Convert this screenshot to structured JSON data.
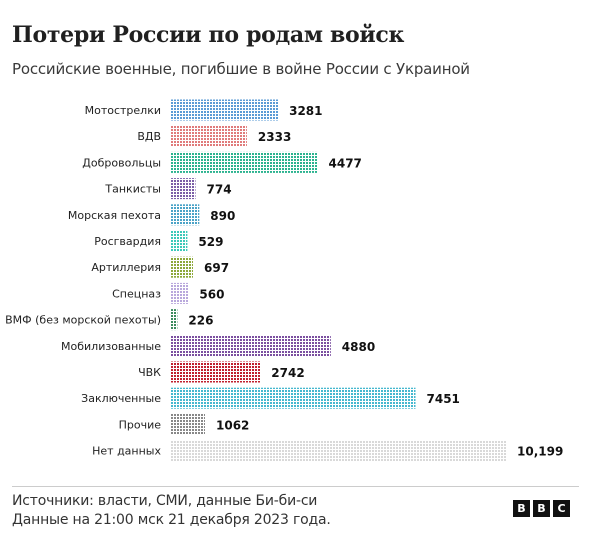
{
  "title": "Потери России по родам войск",
  "subtitle": "Российские военные, погибшие в войне России с Украиной",
  "chart_data": {
    "type": "bar",
    "orientation": "horizontal",
    "title": "Потери России по родам войск",
    "subtitle": "Российские военные, погибшие в войне России с Украиной",
    "categories": [
      "Мотострелки",
      "ВДВ",
      "Добровольцы",
      "Танкисты",
      "Морская пехота",
      "Росгвардия",
      "Артиллерия",
      "Спецназ",
      "ВМФ (без морской пехоты)",
      "Мобилизованные",
      "ЧВК",
      "Заключенные",
      "Прочие",
      "Нет данных"
    ],
    "values": [
      3281,
      2333,
      4477,
      774,
      890,
      529,
      697,
      560,
      226,
      4880,
      2742,
      7451,
      1062,
      10199
    ],
    "value_labels": [
      "3281",
      "2333",
      "4477",
      "774",
      "890",
      "529",
      "697",
      "560",
      "226",
      "4880",
      "2742",
      "7451",
      "1062",
      "10,199"
    ],
    "colors": [
      "#5b9bd5",
      "#e07b7b",
      "#2bb38f",
      "#7b5ea7",
      "#4aa3c7",
      "#3cc9b9",
      "#8da83a",
      "#b9a8dc",
      "#3a8a5c",
      "#7b4fa0",
      "#c0202e",
      "#45b8cf",
      "#888888",
      "#d9d9d9"
    ],
    "bar_style": "dotted",
    "grid": false,
    "legend": "none"
  },
  "footer": {
    "source_line": "Источники: власти, СМИ, данные Би-би-си",
    "date_line": "Данные на 21:00 мск 21 декабря 2023 года."
  },
  "logo": {
    "letters": [
      "B",
      "B",
      "C"
    ]
  }
}
